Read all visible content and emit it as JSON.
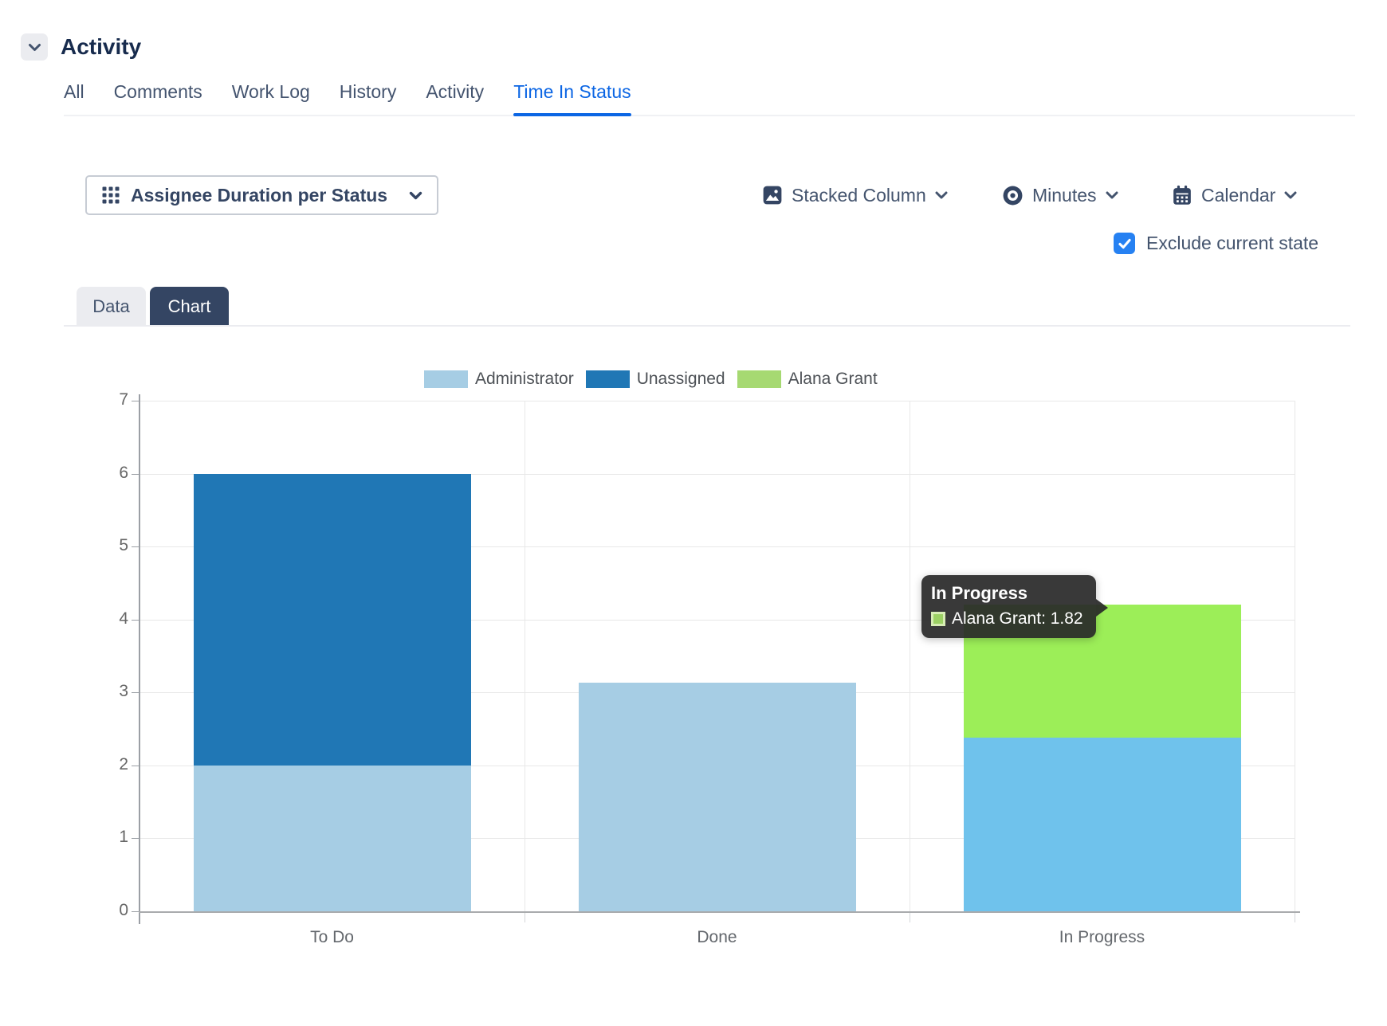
{
  "header": {
    "title": "Activity"
  },
  "activity_tabs": [
    {
      "label": "All",
      "active": false
    },
    {
      "label": "Comments",
      "active": false
    },
    {
      "label": "Work Log",
      "active": false
    },
    {
      "label": "History",
      "active": false
    },
    {
      "label": "Activity",
      "active": false
    },
    {
      "label": "Time In Status",
      "active": true
    }
  ],
  "controls": {
    "report_selector": {
      "label": "Assignee Duration per Status"
    },
    "chart_type": {
      "label": "Stacked Column"
    },
    "time_unit": {
      "label": "Minutes"
    },
    "calendar": {
      "label": "Calendar"
    },
    "exclude_checkbox": {
      "label": "Exclude current state",
      "checked": true
    }
  },
  "view_tabs": [
    {
      "label": "Data",
      "active": false
    },
    {
      "label": "Chart",
      "active": true
    }
  ],
  "chart_data": {
    "type": "bar",
    "stacked": true,
    "title": "",
    "categories": [
      "To Do",
      "Done",
      "In Progress"
    ],
    "series": [
      {
        "name": "Administrator",
        "legend_color": "#a6cde4",
        "values": [
          2.0,
          3.13,
          2.38
        ],
        "colors": [
          "#a6cde4",
          "#a6cde4",
          "#6fc2ec"
        ]
      },
      {
        "name": "Unassigned",
        "legend_color": "#2077b5",
        "values": [
          4.0,
          0,
          0
        ],
        "colors": [
          "#2077b5",
          "#2077b5",
          "#2077b5"
        ]
      },
      {
        "name": "Alana Grant",
        "legend_color": "#a6d972",
        "values": [
          0,
          0,
          1.82
        ],
        "colors": [
          "#9cee58",
          "#9cee58",
          "#9cee58"
        ]
      }
    ],
    "ylim": [
      0,
      7
    ],
    "yticks": [
      0,
      1,
      2,
      3,
      4,
      5,
      6,
      7
    ],
    "grid": true,
    "legend_position": "top",
    "tooltip": {
      "title": "In Progress",
      "entries": [
        {
          "series": "Alana Grant",
          "value": "1.82",
          "swatch_color": "#9cd164"
        }
      ]
    }
  }
}
